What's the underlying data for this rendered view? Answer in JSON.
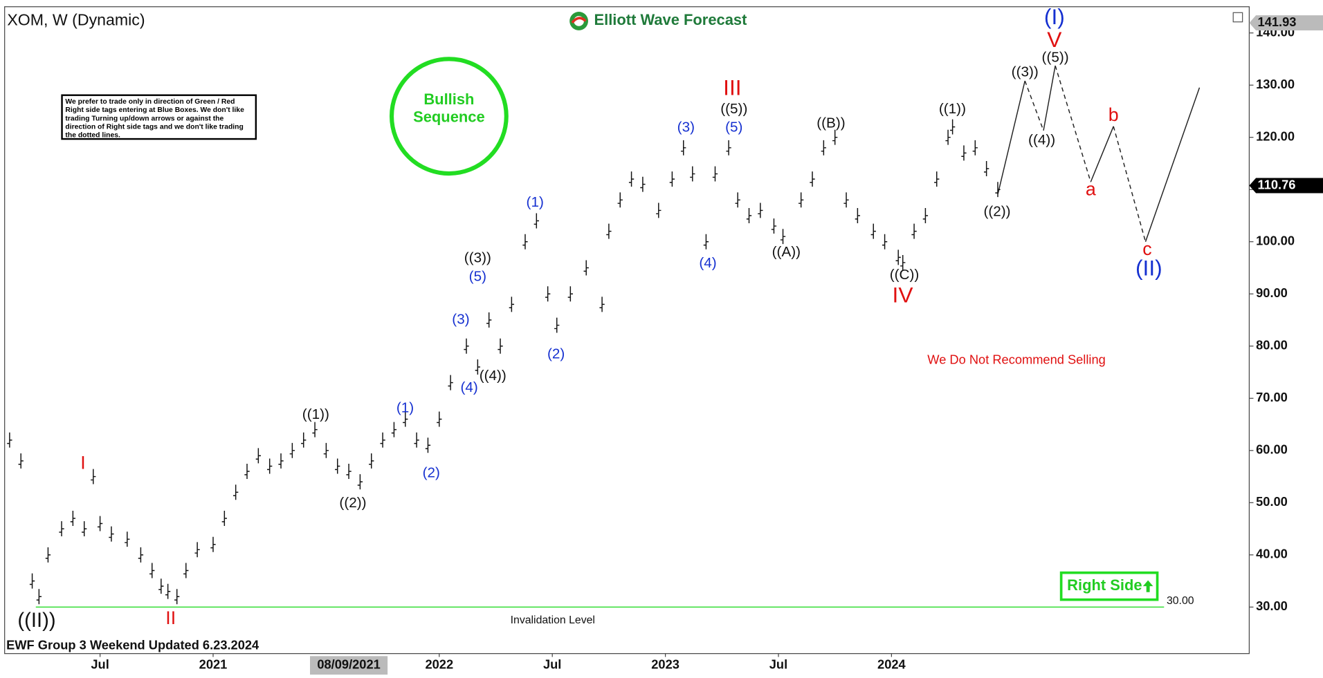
{
  "chart_data": {
    "type": "ohlc",
    "title": "XOM, W (Dynamic)",
    "brand": "Elliott Wave Forecast",
    "note": "We prefer to trade only in direction of Green / Red Right side tags entering at Blue Boxes. We don't like trading Turning up/down arrows or against the direction of Right side tags and we don't like trading the dotted lines.",
    "badge": "Bullish Sequence",
    "warning": "We Do Not Recommend Selling",
    "right_side": "Right Side",
    "footer": "EWF Group 3 Weekend Updated 6.23.2024",
    "crosshair": {
      "value": 2021.6,
      "label": "08/09/2021"
    },
    "invalidation": {
      "value": 30,
      "label": "30.00",
      "text": "Invalidation Level"
    },
    "high_tag": {
      "value": 141.93,
      "label": "141.93"
    },
    "last_price": {
      "value": 110.76,
      "label": "110.76"
    },
    "color": "#111111",
    "xlim": [
      2020.078,
      2025.582
    ],
    "ylim": [
      21.09,
      145.02
    ],
    "xticks": [
      {
        "value": 2020.5,
        "label": "Jul"
      },
      {
        "value": 2021,
        "label": "2021"
      },
      {
        "value": 2022,
        "label": "2022"
      },
      {
        "value": 2022.5,
        "label": "Jul"
      },
      {
        "value": 2023,
        "label": "2023"
      },
      {
        "value": 2023.5,
        "label": "Jul"
      },
      {
        "value": 2024,
        "label": "2024"
      }
    ],
    "yticks": [
      {
        "value": 30,
        "label": "30.00"
      },
      {
        "value": 40,
        "label": "40.00"
      },
      {
        "value": 50,
        "label": "50.00"
      },
      {
        "value": 60,
        "label": "60.00"
      },
      {
        "value": 70,
        "label": "70.00"
      },
      {
        "value": 80,
        "label": "80.00"
      },
      {
        "value": 90,
        "label": "90.00"
      },
      {
        "value": 100,
        "label": "100.00"
      },
      {
        "value": 110,
        "label": "110.00"
      },
      {
        "value": 120,
        "label": "120.00"
      },
      {
        "value": 130,
        "label": "130.00"
      },
      {
        "value": 140,
        "label": "140.00"
      }
    ],
    "x": [
      2020.1,
      2020.15,
      2020.2,
      2020.23,
      2020.27,
      2020.33,
      2020.38,
      2020.43,
      2020.47,
      2020.5,
      2020.55,
      2020.62,
      2020.68,
      2020.73,
      2020.77,
      2020.8,
      2020.84,
      2020.88,
      2020.93,
      2021.0,
      2021.05,
      2021.1,
      2021.15,
      2021.2,
      2021.25,
      2021.3,
      2021.35,
      2021.4,
      2021.45,
      2021.5,
      2021.55,
      2021.6,
      2021.65,
      2021.7,
      2021.75,
      2021.8,
      2021.85,
      2021.9,
      2021.95,
      2022.0,
      2022.05,
      2022.12,
      2022.17,
      2022.22,
      2022.27,
      2022.32,
      2022.38,
      2022.43,
      2022.48,
      2022.52,
      2022.58,
      2022.65,
      2022.72,
      2022.75,
      2022.8,
      2022.85,
      2022.9,
      2022.97,
      2023.03,
      2023.08,
      2023.12,
      2023.18,
      2023.22,
      2023.28,
      2023.32,
      2023.37,
      2023.42,
      2023.48,
      2023.52,
      2023.6,
      2023.65,
      2023.7,
      2023.75,
      2023.8,
      2023.85,
      2023.92,
      2023.97,
      2024.03,
      2024.05,
      2024.1,
      2024.15,
      2024.2,
      2024.25,
      2024.27,
      2024.32,
      2024.37,
      2024.42,
      2024.47
    ],
    "values": [
      62,
      58,
      35,
      32,
      40,
      45,
      47,
      45,
      55,
      46,
      44,
      43,
      40,
      37,
      34,
      33,
      32,
      37,
      41,
      42,
      47,
      52,
      56,
      59,
      57,
      58,
      60,
      62,
      64,
      60,
      57,
      56,
      54,
      58,
      62,
      64,
      66,
      62,
      61,
      66,
      73,
      80,
      76,
      85,
      80,
      88,
      100,
      104,
      90,
      84,
      90,
      95,
      88,
      102,
      108,
      112,
      111,
      106,
      112,
      118,
      113,
      100,
      113,
      118,
      108,
      105,
      106,
      103,
      101,
      108,
      112,
      118,
      120,
      108,
      105,
      102,
      100,
      97,
      96,
      102,
      105,
      112,
      120,
      122,
      117,
      118,
      114,
      110
    ],
    "wave_labels": [
      "((II))",
      "I",
      "II",
      "((1))",
      "((2))",
      "(1)",
      "(2)",
      "((3))",
      "(5)",
      "(3)",
      "(4)",
      "((4))",
      "(1)",
      "(2)",
      "(3)",
      "(4)",
      "III",
      "((5))",
      "(5)",
      "((A))",
      "((B))",
      "((C))",
      "IV",
      "((1))",
      "((2))",
      "((3))",
      "((4))",
      "((5))",
      "V",
      "(I)",
      "a",
      "b",
      "c",
      "(II)"
    ]
  }
}
